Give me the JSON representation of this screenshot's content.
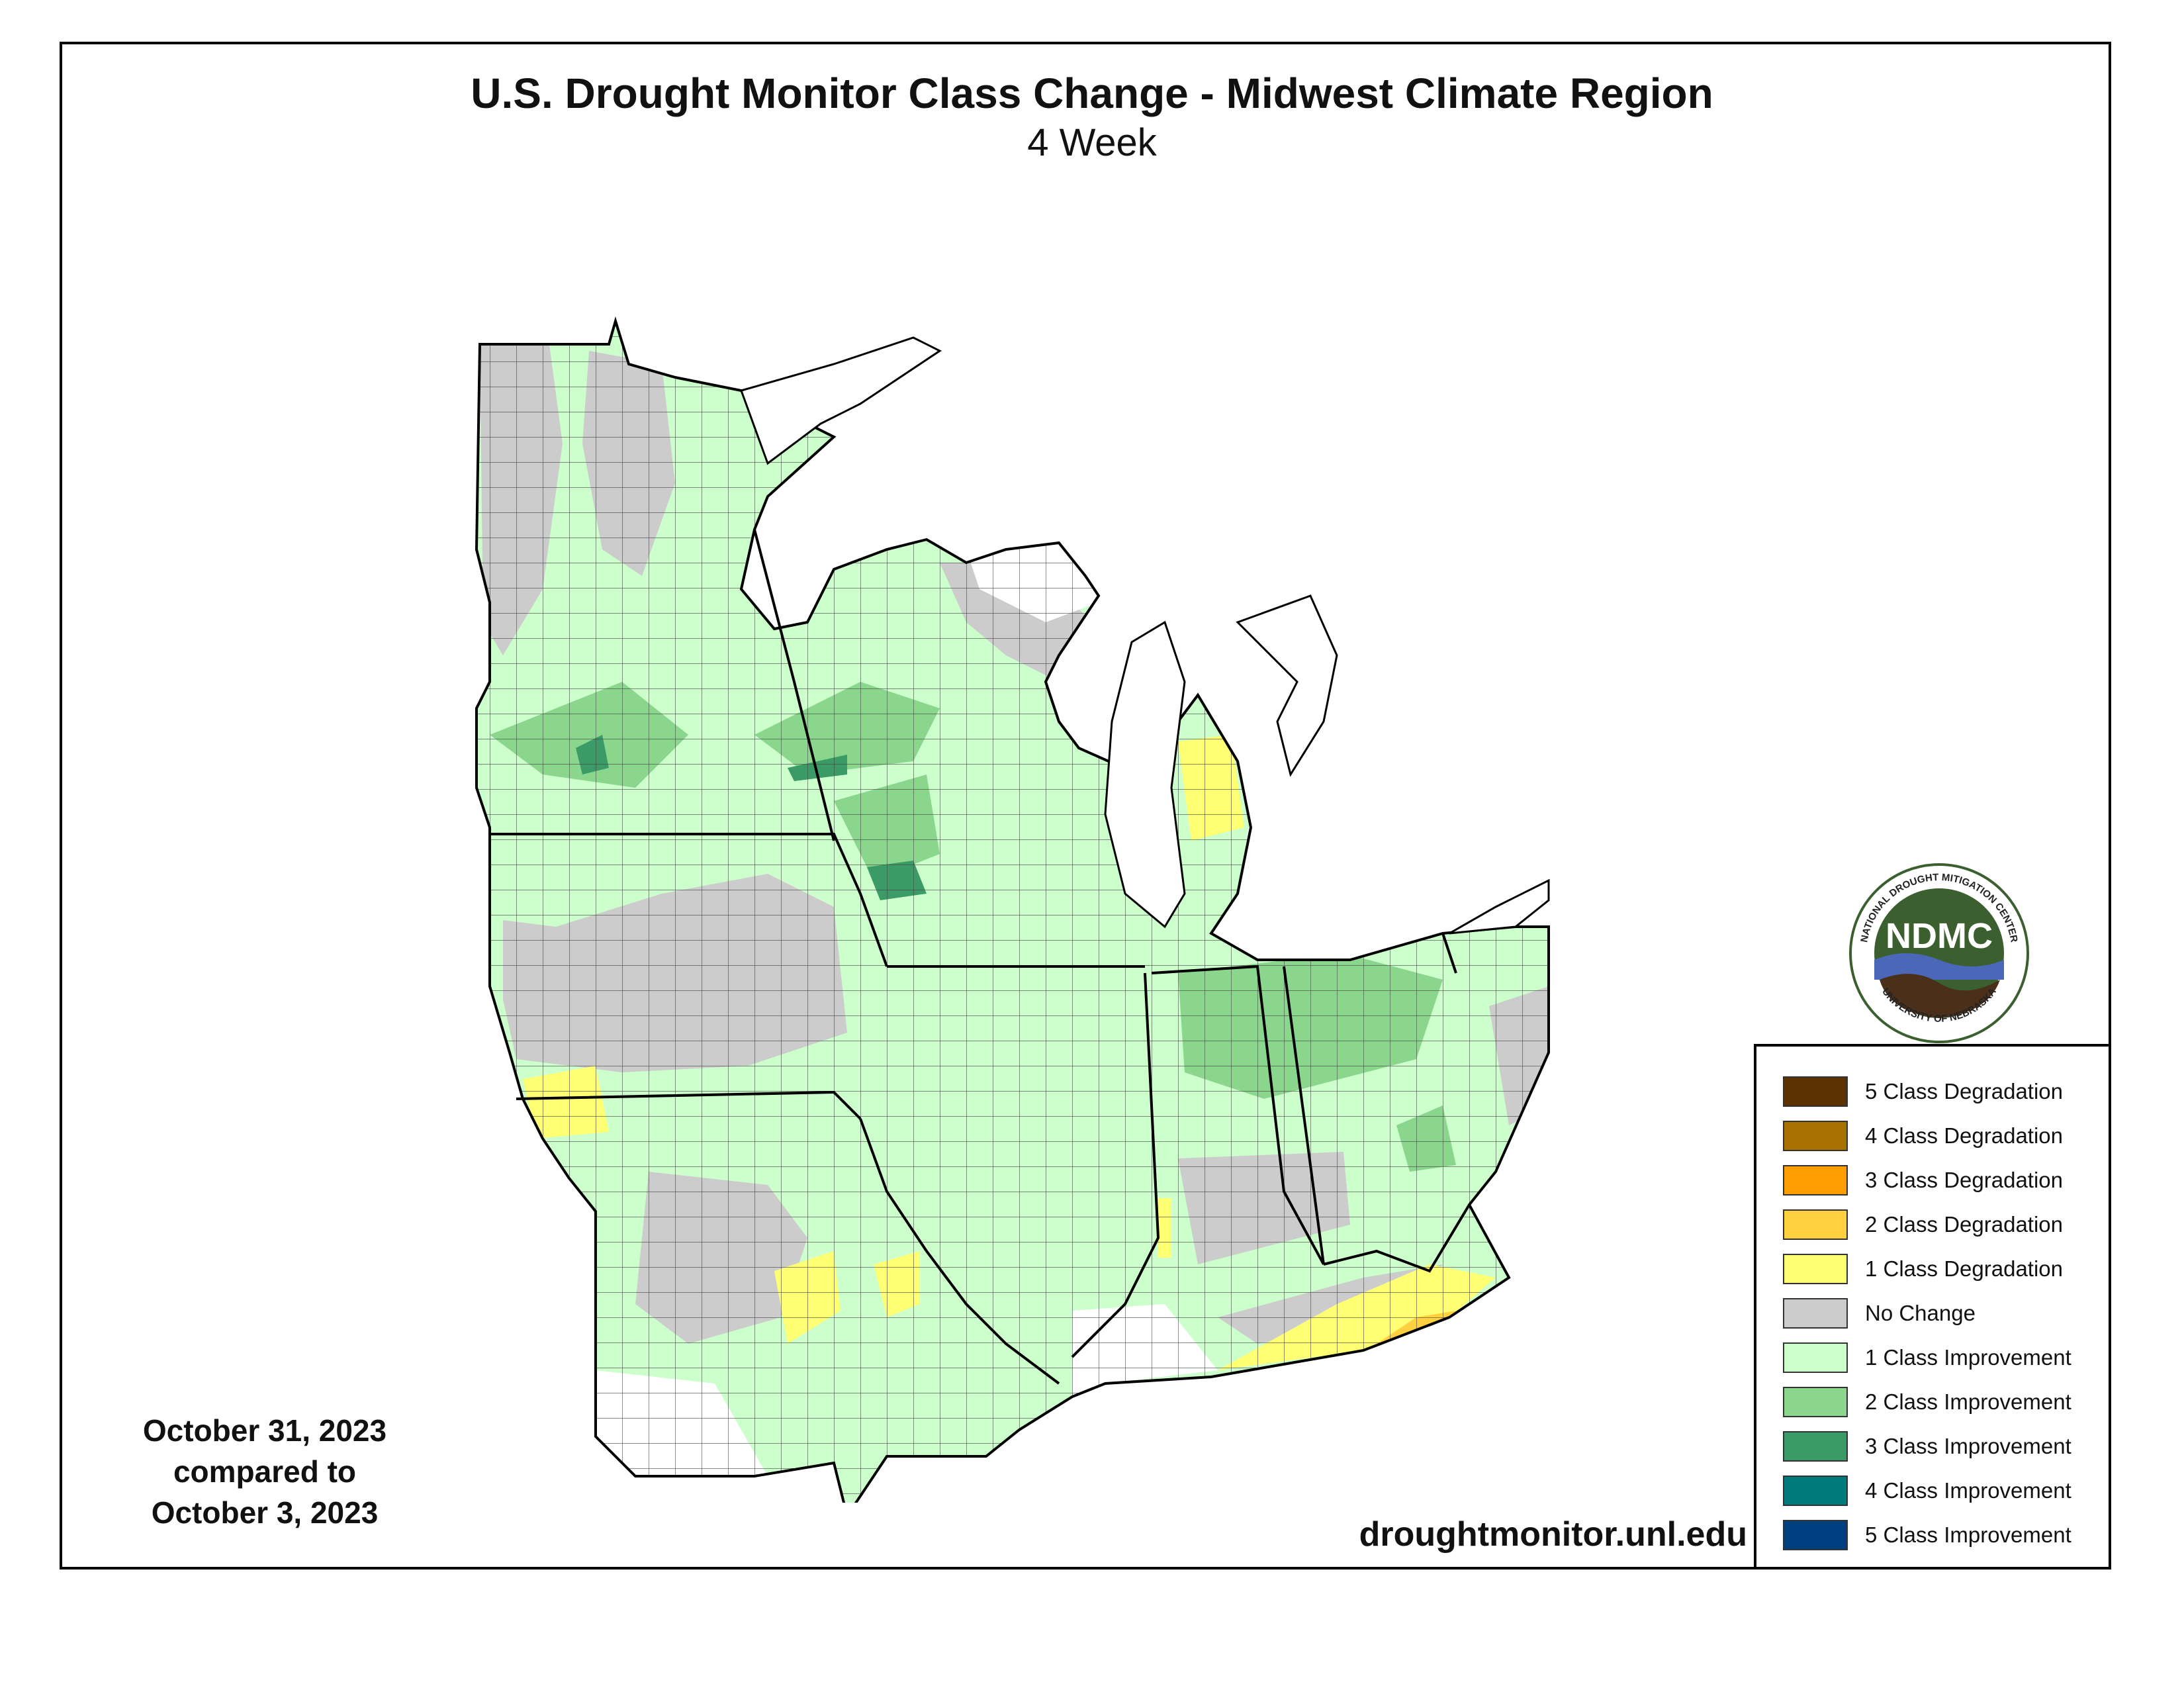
{
  "title": "U.S. Drought Monitor Class Change - Midwest Climate Region",
  "subtitle": "4 Week",
  "date_block": {
    "line1": "October 31, 2023",
    "line2": "compared to",
    "line3": "October 3, 2023"
  },
  "url": "droughtmonitor.unl.edu",
  "logo": {
    "center_text": "NDMC",
    "ring_top": "NATIONAL DROUGHT MITIGATION CENTER",
    "ring_bottom": "UNIVERSITY OF NEBRASKA"
  },
  "legend": {
    "items": [
      {
        "label": "5 Class Degradation",
        "color": "#5c3300"
      },
      {
        "label": "4 Class Degradation",
        "color": "#a87000"
      },
      {
        "label": "3 Class Degradation",
        "color": "#ff9e00"
      },
      {
        "label": "2 Class Degradation",
        "color": "#ffd13f"
      },
      {
        "label": "1 Class Degradation",
        "color": "#ffff73"
      },
      {
        "label": "No Change",
        "color": "#cccccc"
      },
      {
        "label": "1 Class Improvement",
        "color": "#ccffcc"
      },
      {
        "label": "2 Class Improvement",
        "color": "#89d68c"
      },
      {
        "label": "3 Class Improvement",
        "color": "#3a9b66"
      },
      {
        "label": "4 Class Improvement",
        "color": "#007a7a"
      },
      {
        "label": "5 Class Improvement",
        "color": "#003f7f"
      }
    ]
  },
  "colors": {
    "no_change": "#cccccc",
    "improve_1": "#ccffcc",
    "improve_2": "#89d68c",
    "improve_3": "#3a9b66",
    "degrade_1": "#ffff73",
    "degrade_2": "#ffd13f",
    "no_data": "#ffffff",
    "logo_green": "#3b5f2f",
    "logo_blue": "#4b68b8",
    "logo_brown": "#4a2f1a"
  }
}
